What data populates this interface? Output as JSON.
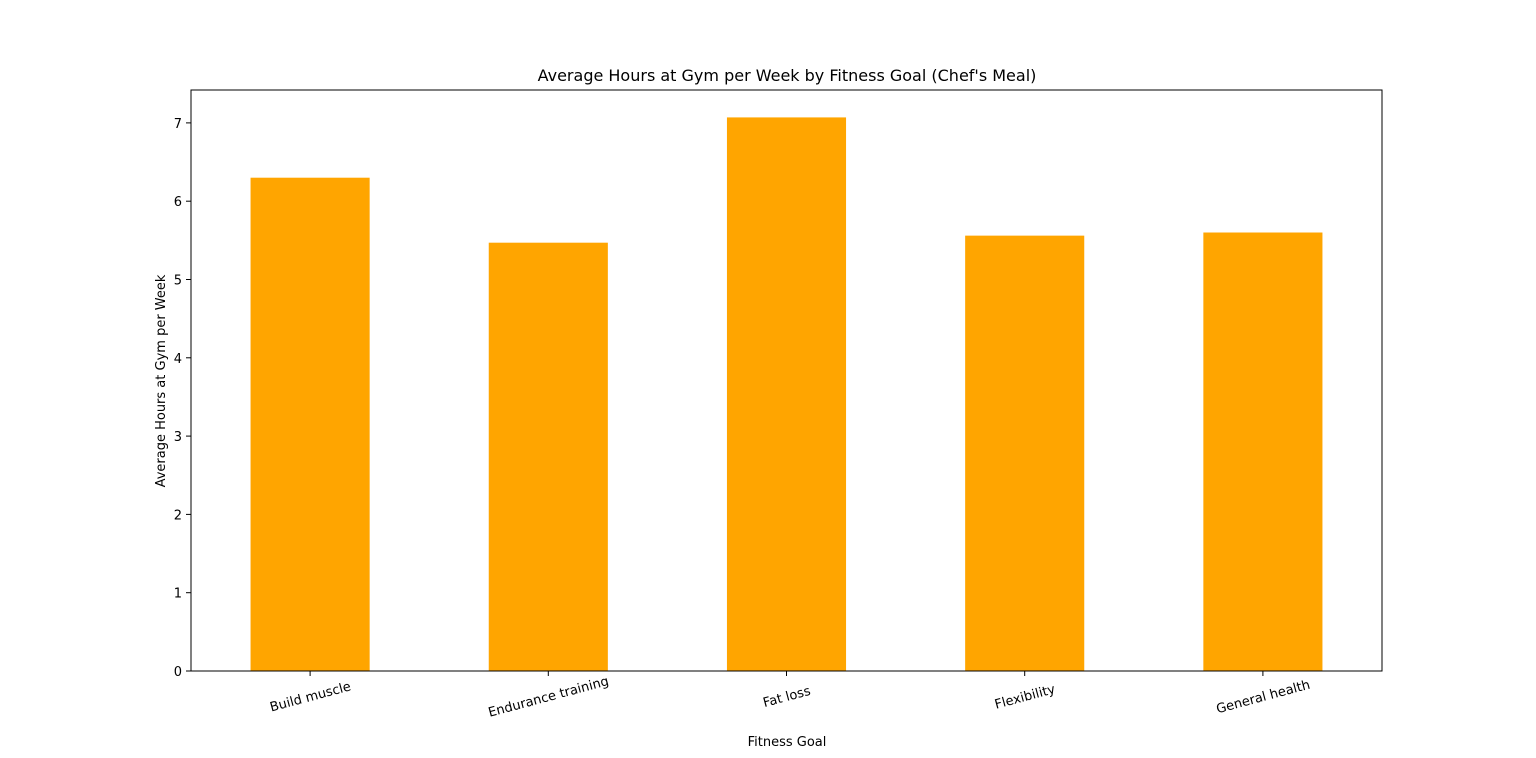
{
  "chart_data": {
    "type": "bar",
    "title": "Average Hours at Gym per Week by Fitness Goal (Chef's Meal)",
    "xlabel": "Fitness Goal",
    "ylabel": "Average Hours at Gym per Week",
    "categories": [
      "Build muscle",
      "Endurance training",
      "Fat loss",
      "Flexibility",
      "General health"
    ],
    "values": [
      6.3,
      5.47,
      7.07,
      5.56,
      5.6
    ],
    "ylim": [
      0,
      7.42
    ],
    "yticks": [
      0,
      1,
      2,
      3,
      4,
      5,
      6,
      7
    ],
    "ytick_labels": [
      "0",
      "1",
      "2",
      "3",
      "4",
      "5",
      "6",
      "7"
    ],
    "bar_color": "#FFA500",
    "grid": false,
    "legend": "none"
  }
}
